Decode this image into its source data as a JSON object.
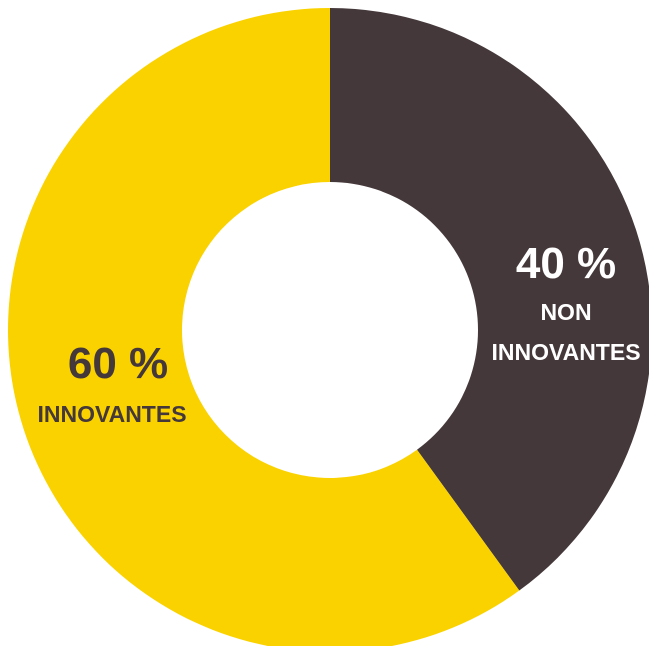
{
  "chart_data": {
    "type": "pie",
    "subtype": "donut",
    "start": "12 o'clock",
    "direction": "clockwise",
    "slices": [
      {
        "value": 40,
        "value_label": "40 %",
        "label_lines": [
          "NON",
          "INNOVANTES"
        ],
        "color": "#45383a",
        "label_color": "#ffffff"
      },
      {
        "value": 60,
        "value_label": "60 %",
        "label_lines": [
          "INNOVANTES"
        ],
        "color": "#fad200",
        "label_color": "#45383a"
      }
    ]
  }
}
